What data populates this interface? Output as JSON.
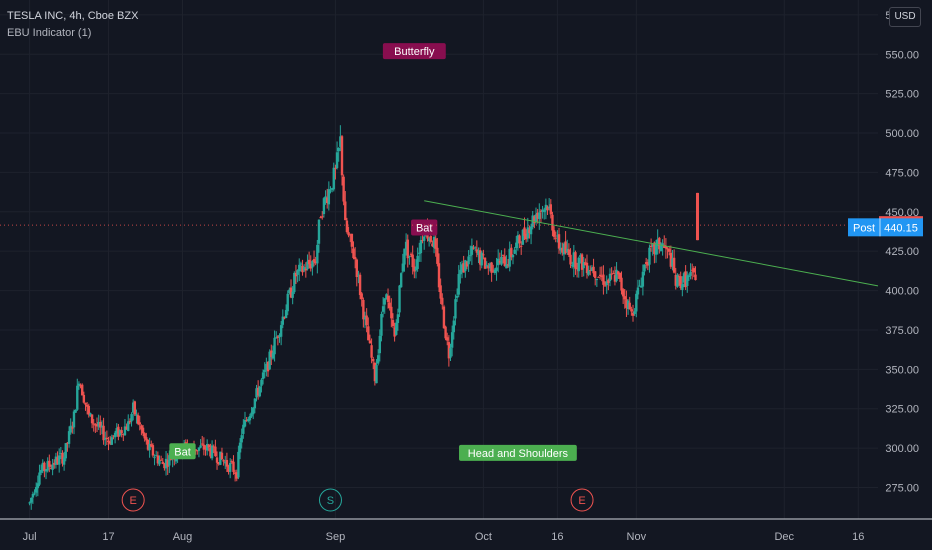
{
  "header": {
    "title": "TESLA INC, 4h, Cboe BZX",
    "indicator": "EBU Indicator (1)",
    "currency": "USD"
  },
  "price_tags": {
    "last": "441.51",
    "post_label": "Post",
    "post_value": "440.15"
  },
  "colors": {
    "background": "#131722",
    "up": "#26a69a",
    "down": "#ef5350",
    "trendline": "#4caf50",
    "grid": "#1e222d",
    "axis_text": "#b2b5be",
    "pattern_bearish": "#880e4f",
    "pattern_bullish": "#4caf50",
    "post_badge": "#2196f3"
  },
  "chart_data": {
    "type": "candlestick",
    "symbol": "TSLA",
    "interval": "4h",
    "y_ticks": [
      275,
      300,
      325,
      350,
      375,
      400,
      425,
      450,
      475,
      500,
      525,
      550,
      575
    ],
    "ylim": [
      255,
      580
    ],
    "x_tick_labels": [
      {
        "label": "Jul",
        "date": "2020-07-01"
      },
      {
        "label": "17",
        "date": "2020-07-17"
      },
      {
        "label": "Aug",
        "date": "2020-08-01"
      },
      {
        "label": "Sep",
        "date": "2020-09-01"
      },
      {
        "label": "Oct",
        "date": "2020-10-01"
      },
      {
        "label": "16",
        "date": "2020-10-16"
      },
      {
        "label": "Nov",
        "date": "2020-11-01"
      },
      {
        "label": "Dec",
        "date": "2020-12-01"
      },
      {
        "label": "16",
        "date": "2020-12-16"
      }
    ],
    "xlim": [
      "2020-06-25",
      "2020-12-20"
    ],
    "last_candle_date": "2020-11-13",
    "anchors": [
      [
        "2020-07-01",
        265
      ],
      [
        "2020-07-03",
        285
      ],
      [
        "2020-07-08",
        295
      ],
      [
        "2020-07-10",
        320
      ],
      [
        "2020-07-11",
        345
      ],
      [
        "2020-07-13",
        320
      ],
      [
        "2020-07-17",
        305
      ],
      [
        "2020-07-21",
        315
      ],
      [
        "2020-07-22",
        325
      ],
      [
        "2020-07-25",
        300
      ],
      [
        "2020-07-28",
        290
      ],
      [
        "2020-08-01",
        300
      ],
      [
        "2020-08-06",
        300
      ],
      [
        "2020-08-12",
        285
      ],
      [
        "2020-08-13",
        310
      ],
      [
        "2020-08-18",
        350
      ],
      [
        "2020-08-21",
        380
      ],
      [
        "2020-08-24",
        410
      ],
      [
        "2020-08-28",
        420
      ],
      [
        "2020-08-29",
        450
      ],
      [
        "2020-09-01",
        475
      ],
      [
        "2020-09-02",
        495
      ],
      [
        "2020-09-03",
        440
      ],
      [
        "2020-09-05",
        420
      ],
      [
        "2020-09-07",
        380
      ],
      [
        "2020-09-09",
        345
      ],
      [
        "2020-09-11",
        400
      ],
      [
        "2020-09-13",
        370
      ],
      [
        "2020-09-15",
        430
      ],
      [
        "2020-09-17",
        415
      ],
      [
        "2020-09-19",
        440
      ],
      [
        "2020-09-21",
        430
      ],
      [
        "2020-09-23",
        380
      ],
      [
        "2020-09-24",
        360
      ],
      [
        "2020-09-26",
        410
      ],
      [
        "2020-09-29",
        425
      ],
      [
        "2020-10-02",
        415
      ],
      [
        "2020-10-06",
        420
      ],
      [
        "2020-10-09",
        435
      ],
      [
        "2020-10-12",
        450
      ],
      [
        "2020-10-14",
        455
      ],
      [
        "2020-10-16",
        430
      ],
      [
        "2020-10-19",
        420
      ],
      [
        "2020-10-23",
        415
      ],
      [
        "2020-10-26",
        405
      ],
      [
        "2020-10-28",
        410
      ],
      [
        "2020-10-31",
        385
      ],
      [
        "2020-11-01",
        395
      ],
      [
        "2020-11-03",
        420
      ],
      [
        "2020-11-06",
        430
      ],
      [
        "2020-11-08",
        420
      ],
      [
        "2020-11-09",
        405
      ],
      [
        "2020-11-12",
        408
      ],
      [
        "2020-11-13",
        410
      ]
    ],
    "final_candle": {
      "open": 432,
      "high": 462,
      "low": 432,
      "close": 441.51
    },
    "trendline": {
      "start": [
        "2020-09-19",
        457
      ],
      "end": [
        "2020-12-20",
        403
      ]
    },
    "pattern_labels": [
      {
        "text": "Butterfly",
        "date": "2020-09-17",
        "price": 552,
        "kind": "bearish"
      },
      {
        "text": "Bat",
        "date": "2020-09-19",
        "price": 440,
        "kind": "bearish"
      },
      {
        "text": "Bat",
        "date": "2020-08-01",
        "price": 298,
        "kind": "bullish"
      },
      {
        "text": "Head and Shoulders",
        "date": "2020-10-08",
        "price": 297,
        "kind": "bullish"
      }
    ],
    "event_markers": [
      {
        "letter": "E",
        "date": "2020-07-22",
        "kind": "earnings"
      },
      {
        "letter": "S",
        "date": "2020-08-31",
        "kind": "split"
      },
      {
        "letter": "E",
        "date": "2020-10-21",
        "kind": "earnings"
      }
    ]
  }
}
